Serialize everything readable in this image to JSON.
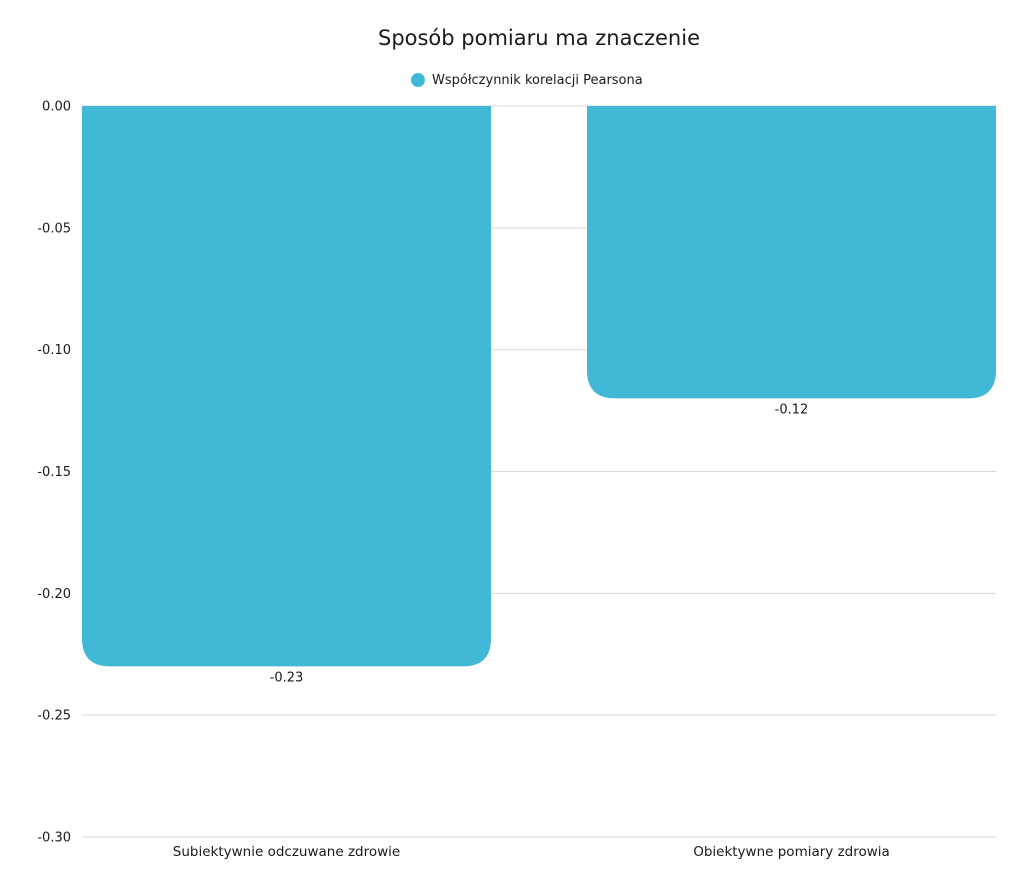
{
  "chart_data": {
    "type": "bar",
    "title": "Sposób pomiaru ma znaczenie",
    "categories": [
      "Subiektywnie odczuwane zdrowie",
      "Obiektywne pomiary zdrowia"
    ],
    "series": [
      {
        "name": "Współczynnik korelacji Pearsona",
        "values": [
          -0.23,
          -0.12
        ],
        "color": "#42b8d7"
      }
    ],
    "value_labels": [
      "-0.23",
      "-0.12"
    ],
    "ylim": [
      -0.3,
      0
    ],
    "yticks": [
      0,
      -0.05,
      -0.1,
      -0.15,
      -0.2,
      -0.25,
      -0.3
    ],
    "ytick_labels": [
      "0.00",
      "-0.05",
      "-0.10",
      "-0.15",
      "-0.20",
      "-0.25",
      "-0.30"
    ],
    "legend_position": "top-center",
    "grid": true,
    "xlabel": "",
    "ylabel": ""
  }
}
